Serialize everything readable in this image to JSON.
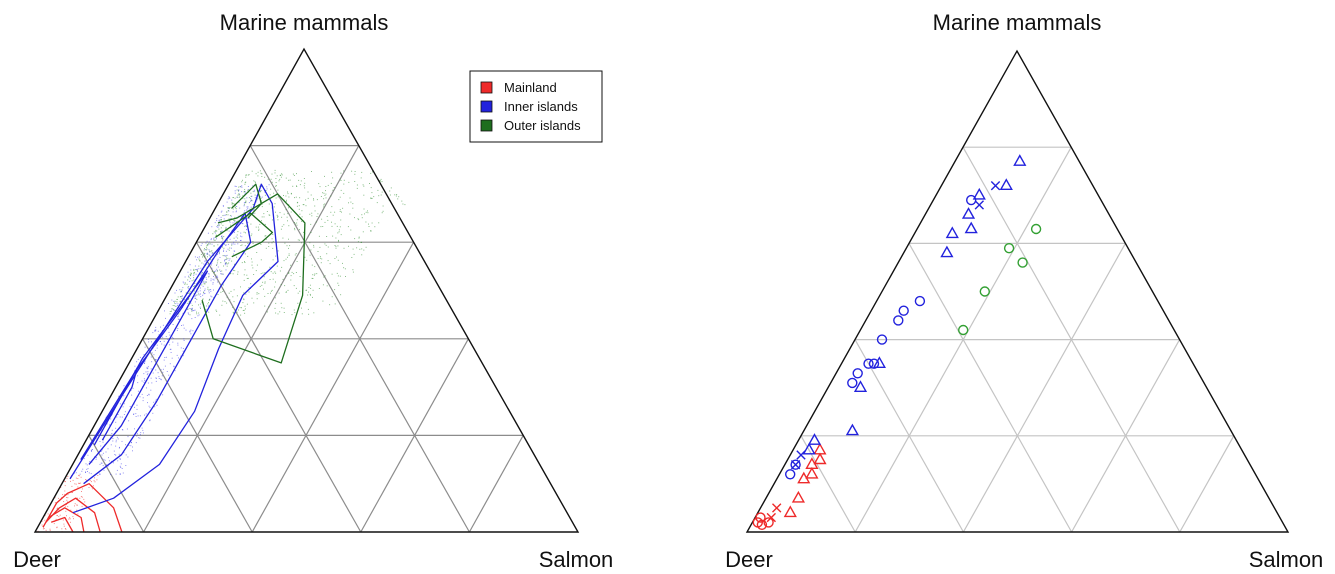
{
  "chart_data": [
    {
      "type": "ternary-density",
      "vertex_labels": {
        "top": "Marine mammals",
        "left": "Deer",
        "right": "Salmon"
      },
      "grid": "5x5 (20% intervals)",
      "legend": {
        "position": "top-right",
        "entries": [
          {
            "name": "Mainland",
            "color": "#ee2a2a"
          },
          {
            "name": "Inner islands",
            "color": "#2222dd"
          },
          {
            "name": "Outer islands",
            "color": "#1e6e1e"
          }
        ]
      },
      "series": [
        {
          "name": "Mainland",
          "color": "#ee2a2a",
          "contour_levels": [
            [
              [
                0.98,
                0.01,
                0.01
              ],
              [
                0.93,
                0.06,
                0.01
              ],
              [
                0.9,
                0.08,
                0.02
              ],
              [
                0.85,
                0.1,
                0.05
              ],
              [
                0.83,
                0.05,
                0.12
              ],
              [
                0.84,
                0.0,
                0.16
              ]
            ],
            [
              [
                0.97,
                0.02,
                0.01
              ],
              [
                0.93,
                0.05,
                0.02
              ],
              [
                0.89,
                0.07,
                0.04
              ],
              [
                0.87,
                0.04,
                0.09
              ],
              [
                0.88,
                0.0,
                0.12
              ]
            ],
            [
              [
                0.96,
                0.03,
                0.01
              ],
              [
                0.92,
                0.05,
                0.03
              ],
              [
                0.9,
                0.03,
                0.07
              ],
              [
                0.91,
                0.0,
                0.09
              ]
            ],
            [
              [
                0.96,
                0.02,
                0.02
              ],
              [
                0.93,
                0.03,
                0.04
              ],
              [
                0.93,
                0.0,
                0.07
              ]
            ]
          ]
        },
        {
          "name": "Inner islands",
          "color": "#2222dd",
          "contour_levels": [
            [
              [
                0.88,
                0.11,
                0.01
              ],
              [
                0.7,
                0.28,
                0.02
              ],
              [
                0.55,
                0.42,
                0.03
              ],
              [
                0.4,
                0.56,
                0.04
              ],
              [
                0.26,
                0.67,
                0.07
              ],
              [
                0.22,
                0.72,
                0.06
              ],
              [
                0.22,
                0.68,
                0.1
              ],
              [
                0.27,
                0.56,
                0.17
              ],
              [
                0.37,
                0.49,
                0.14
              ],
              [
                0.47,
                0.38,
                0.15
              ],
              [
                0.58,
                0.25,
                0.17
              ],
              [
                0.7,
                0.14,
                0.16
              ],
              [
                0.82,
                0.07,
                0.11
              ],
              [
                0.91,
                0.04,
                0.05
              ]
            ],
            [
              [
                0.84,
                0.15,
                0.01
              ],
              [
                0.65,
                0.33,
                0.02
              ],
              [
                0.5,
                0.46,
                0.04
              ],
              [
                0.36,
                0.59,
                0.05
              ],
              [
                0.28,
                0.66,
                0.06
              ],
              [
                0.3,
                0.6,
                0.1
              ],
              [
                0.4,
                0.51,
                0.09
              ],
              [
                0.52,
                0.39,
                0.09
              ],
              [
                0.64,
                0.27,
                0.09
              ],
              [
                0.76,
                0.16,
                0.08
              ],
              [
                0.86,
                0.1,
                0.04
              ]
            ],
            [
              [
                0.8,
                0.18,
                0.02
              ],
              [
                0.62,
                0.36,
                0.02
              ],
              [
                0.48,
                0.48,
                0.04
              ],
              [
                0.41,
                0.54,
                0.05
              ],
              [
                0.47,
                0.48,
                0.05
              ],
              [
                0.6,
                0.35,
                0.05
              ],
              [
                0.73,
                0.22,
                0.05
              ],
              [
                0.83,
                0.14,
                0.03
              ]
            ],
            [
              [
                0.76,
                0.22,
                0.02
              ],
              [
                0.64,
                0.34,
                0.02
              ],
              [
                0.67,
                0.3,
                0.03
              ],
              [
                0.78,
                0.19,
                0.03
              ]
            ]
          ]
        },
        {
          "name": "Outer islands",
          "color": "#1e6e1e",
          "contour_levels": [
            [
              [
                0.34,
                0.64,
                0.02
              ],
              [
                0.3,
                0.65,
                0.05
              ],
              [
                0.2,
                0.7,
                0.1
              ],
              [
                0.18,
                0.64,
                0.18
              ],
              [
                0.26,
                0.49,
                0.25
              ],
              [
                0.37,
                0.35,
                0.28
              ],
              [
                0.47,
                0.4,
                0.13
              ],
              [
                0.45,
                0.48,
                0.07
              ]
            ],
            [
              [
                0.36,
                0.61,
                0.03
              ],
              [
                0.27,
                0.66,
                0.07
              ],
              [
                0.25,
                0.62,
                0.13
              ],
              [
                0.28,
                0.6,
                0.12
              ],
              [
                0.35,
                0.57,
                0.08
              ]
            ],
            [
              [
                0.3,
                0.67,
                0.03
              ],
              [
                0.23,
                0.72,
                0.05
              ],
              [
                0.24,
                0.68,
                0.08
              ],
              [
                0.28,
                0.65,
                0.07
              ]
            ]
          ]
        }
      ]
    },
    {
      "type": "ternary-scatter",
      "vertex_labels": {
        "top": "Marine mammals",
        "left": "Deer",
        "right": "Salmon"
      },
      "grid": "5x5 (20% intervals)",
      "series": [
        {
          "name": "Mainland",
          "color": "#ee2a2a",
          "points": [
            {
              "marker": "circle",
              "deer": 0.97,
              "mm": 0.02,
              "salmon": 0.01
            },
            {
              "marker": "circle",
              "deer": 0.965,
              "mm": 0.015,
              "salmon": 0.02
            },
            {
              "marker": "circle",
              "deer": 0.95,
              "mm": 0.02,
              "salmon": 0.03
            },
            {
              "marker": "circle",
              "deer": 0.96,
              "mm": 0.03,
              "salmon": 0.01
            },
            {
              "marker": "x",
              "deer": 0.94,
              "mm": 0.03,
              "salmon": 0.03
            },
            {
              "marker": "x",
              "deer": 0.92,
              "mm": 0.05,
              "salmon": 0.03
            },
            {
              "marker": "triangle",
              "deer": 0.9,
              "mm": 0.04,
              "salmon": 0.06
            },
            {
              "marker": "triangle",
              "deer": 0.87,
              "mm": 0.07,
              "salmon": 0.06
            },
            {
              "marker": "triangle",
              "deer": 0.84,
              "mm": 0.11,
              "salmon": 0.05
            },
            {
              "marker": "triangle",
              "deer": 0.82,
              "mm": 0.12,
              "salmon": 0.06
            },
            {
              "marker": "triangle",
              "deer": 0.81,
              "mm": 0.14,
              "salmon": 0.05
            },
            {
              "marker": "triangle",
              "deer": 0.79,
              "mm": 0.15,
              "salmon": 0.06
            },
            {
              "marker": "triangle",
              "deer": 0.78,
              "mm": 0.17,
              "salmon": 0.05
            }
          ]
        },
        {
          "name": "Inner islands",
          "color": "#2222dd",
          "points": [
            {
              "marker": "circle",
              "deer": 0.86,
              "mm": 0.12,
              "salmon": 0.02
            },
            {
              "marker": "circle",
              "deer": 0.84,
              "mm": 0.14,
              "salmon": 0.02
            },
            {
              "marker": "x",
              "deer": 0.84,
              "mm": 0.14,
              "salmon": 0.02
            },
            {
              "marker": "x",
              "deer": 0.82,
              "mm": 0.16,
              "salmon": 0.02
            },
            {
              "marker": "triangle",
              "deer": 0.8,
              "mm": 0.17,
              "salmon": 0.03
            },
            {
              "marker": "triangle",
              "deer": 0.78,
              "mm": 0.19,
              "salmon": 0.03
            },
            {
              "marker": "triangle",
              "deer": 0.7,
              "mm": 0.21,
              "salmon": 0.09
            },
            {
              "marker": "circle",
              "deer": 0.65,
              "mm": 0.31,
              "salmon": 0.04
            },
            {
              "marker": "circle",
              "deer": 0.63,
              "mm": 0.33,
              "salmon": 0.04
            },
            {
              "marker": "triangle",
              "deer": 0.64,
              "mm": 0.3,
              "salmon": 0.06
            },
            {
              "marker": "circle",
              "deer": 0.6,
              "mm": 0.35,
              "salmon": 0.05
            },
            {
              "marker": "circle",
              "deer": 0.59,
              "mm": 0.35,
              "salmon": 0.06
            },
            {
              "marker": "triangle",
              "deer": 0.58,
              "mm": 0.35,
              "salmon": 0.07
            },
            {
              "marker": "circle",
              "deer": 0.55,
              "mm": 0.4,
              "salmon": 0.05
            },
            {
              "marker": "circle",
              "deer": 0.5,
              "mm": 0.44,
              "salmon": 0.06
            },
            {
              "marker": "circle",
              "deer": 0.48,
              "mm": 0.46,
              "salmon": 0.06
            },
            {
              "marker": "circle",
              "deer": 0.44,
              "mm": 0.48,
              "salmon": 0.08
            },
            {
              "marker": "triangle",
              "deer": 0.34,
              "mm": 0.58,
              "salmon": 0.08
            },
            {
              "marker": "triangle",
              "deer": 0.31,
              "mm": 0.62,
              "salmon": 0.07
            },
            {
              "marker": "triangle",
              "deer": 0.26,
              "mm": 0.66,
              "salmon": 0.08
            },
            {
              "marker": "triangle",
              "deer": 0.27,
              "mm": 0.63,
              "salmon": 0.1
            },
            {
              "marker": "circle",
              "deer": 0.24,
              "mm": 0.69,
              "salmon": 0.07
            },
            {
              "marker": "x",
              "deer": 0.23,
              "mm": 0.68,
              "salmon": 0.09
            },
            {
              "marker": "triangle",
              "deer": 0.22,
              "mm": 0.7,
              "salmon": 0.08
            },
            {
              "marker": "x",
              "deer": 0.18,
              "mm": 0.72,
              "salmon": 0.1
            },
            {
              "marker": "triangle",
              "deer": 0.16,
              "mm": 0.72,
              "salmon": 0.12
            },
            {
              "marker": "triangle",
              "deer": 0.11,
              "mm": 0.77,
              "salmon": 0.12
            }
          ]
        },
        {
          "name": "Outer islands",
          "color": "#33a033",
          "points": [
            {
              "marker": "circle",
              "deer": 0.15,
              "mm": 0.63,
              "salmon": 0.22
            },
            {
              "marker": "circle",
              "deer": 0.22,
              "mm": 0.59,
              "salmon": 0.19
            },
            {
              "marker": "circle",
              "deer": 0.21,
              "mm": 0.56,
              "salmon": 0.23
            },
            {
              "marker": "circle",
              "deer": 0.31,
              "mm": 0.5,
              "salmon": 0.19
            },
            {
              "marker": "circle",
              "deer": 0.39,
              "mm": 0.42,
              "salmon": 0.19
            }
          ]
        }
      ]
    }
  ]
}
